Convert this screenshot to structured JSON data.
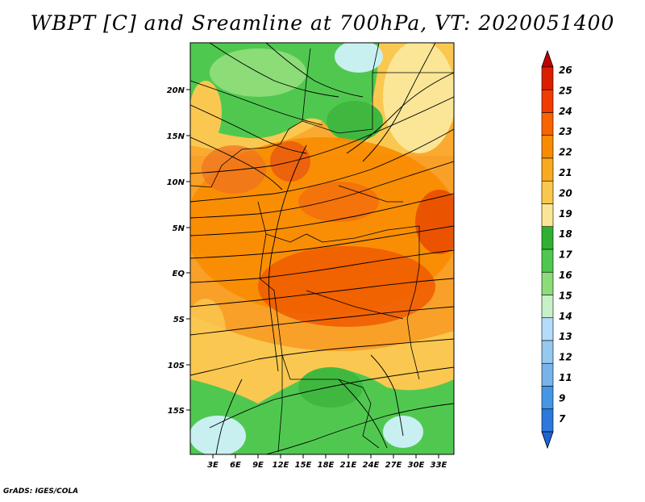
{
  "title": "WBPT [C] and Sreamline at 700hPa, VT: 2020051400",
  "credit": "GrADS: IGES/COLA",
  "map": {
    "lat_labels": [
      "20N",
      "15N",
      "10N",
      "5N",
      "EQ",
      "5S",
      "10S",
      "15S"
    ],
    "lon_labels": [
      "3E",
      "6E",
      "9E",
      "12E",
      "15E",
      "18E",
      "21E",
      "24E",
      "27E",
      "30E",
      "33E"
    ]
  },
  "colorbar": {
    "levels": [
      "26",
      "25",
      "24",
      "23",
      "22",
      "21",
      "20",
      "19",
      "18",
      "17",
      "16",
      "15",
      "14",
      "13",
      "12",
      "11",
      "9",
      "7"
    ],
    "colors": [
      "#c00000",
      "#dc1e00",
      "#f03c00",
      "#f86400",
      "#f88c00",
      "#faaa20",
      "#fac850",
      "#fae696",
      "#30b030",
      "#50c850",
      "#8cdc78",
      "#c8f0c8",
      "#b4dcfa",
      "#96c8f0",
      "#78b4eb",
      "#4696e6",
      "#2c78dc",
      "#1e64d2"
    ]
  }
}
